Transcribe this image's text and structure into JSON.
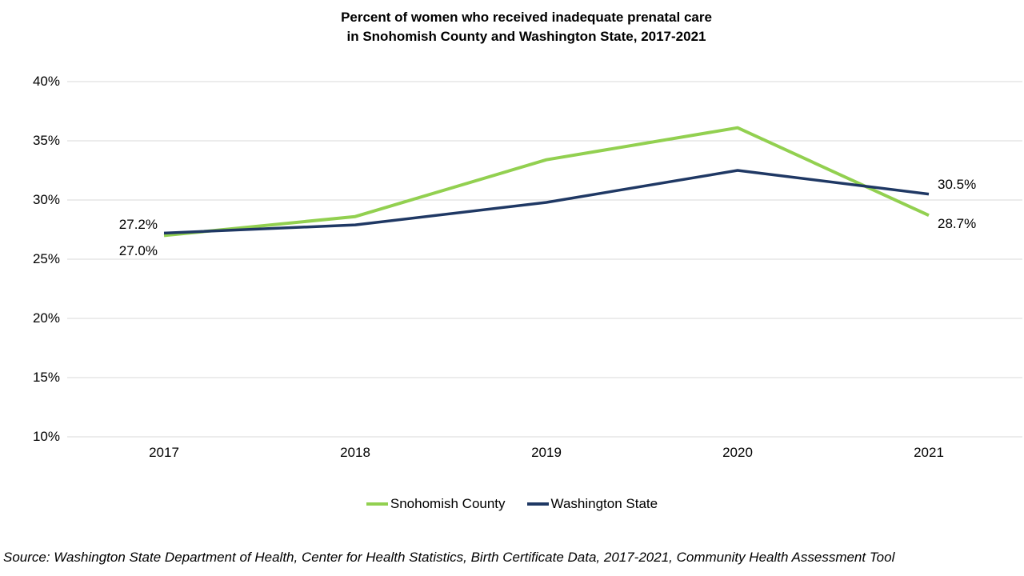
{
  "title": {
    "line1": "Percent of women who received inadequate prenatal care",
    "line2": "in Snohomish County and Washington State, 2017-2021"
  },
  "source": "Source: Washington State Department of Health, Center for Health Statistics, Birth Certificate Data, 2017-2021, Community Health Assessment Tool",
  "legend": {
    "items": [
      {
        "label": "Snohomish County",
        "color": "#92D050"
      },
      {
        "label": "Washington State",
        "color": "#1F3864"
      }
    ]
  },
  "colors": {
    "snohomish_green": "#92D050",
    "washington_navy": "#1F3864",
    "gridline": "#D9D9D9",
    "text": "#000000"
  },
  "chart_data": {
    "type": "line",
    "title": "Percent of women who received inadequate prenatal care in Snohomish County and Washington State, 2017-2021",
    "x": [
      "2017",
      "2018",
      "2019",
      "2020",
      "2021"
    ],
    "series": [
      {
        "name": "Snohomish County",
        "color": "#92D050",
        "stroke_width": 4,
        "values": [
          27.0,
          28.6,
          33.4,
          36.1,
          28.7
        ]
      },
      {
        "name": "Washington State",
        "color": "#1F3864",
        "stroke_width": 3.5,
        "values": [
          27.2,
          27.9,
          29.8,
          32.5,
          30.5
        ]
      }
    ],
    "ylim": [
      10,
      40
    ],
    "yticks": [
      {
        "value": 40,
        "label": "40%"
      },
      {
        "value": 35,
        "label": "35%"
      },
      {
        "value": 30,
        "label": "30%"
      },
      {
        "value": 25,
        "label": "25%"
      },
      {
        "value": 20,
        "label": "20%"
      },
      {
        "value": 15,
        "label": "15%"
      },
      {
        "value": 10,
        "label": "10%"
      }
    ],
    "grid": true,
    "legend_position": "bottom",
    "point_labels": [
      {
        "series": "Washington State",
        "year": "2017",
        "text": "27.2%"
      },
      {
        "series": "Snohomish County",
        "year": "2017",
        "text": "27.0%"
      },
      {
        "series": "Washington State",
        "year": "2021",
        "text": "30.5%"
      },
      {
        "series": "Snohomish County",
        "year": "2021",
        "text": "28.7%"
      }
    ]
  }
}
